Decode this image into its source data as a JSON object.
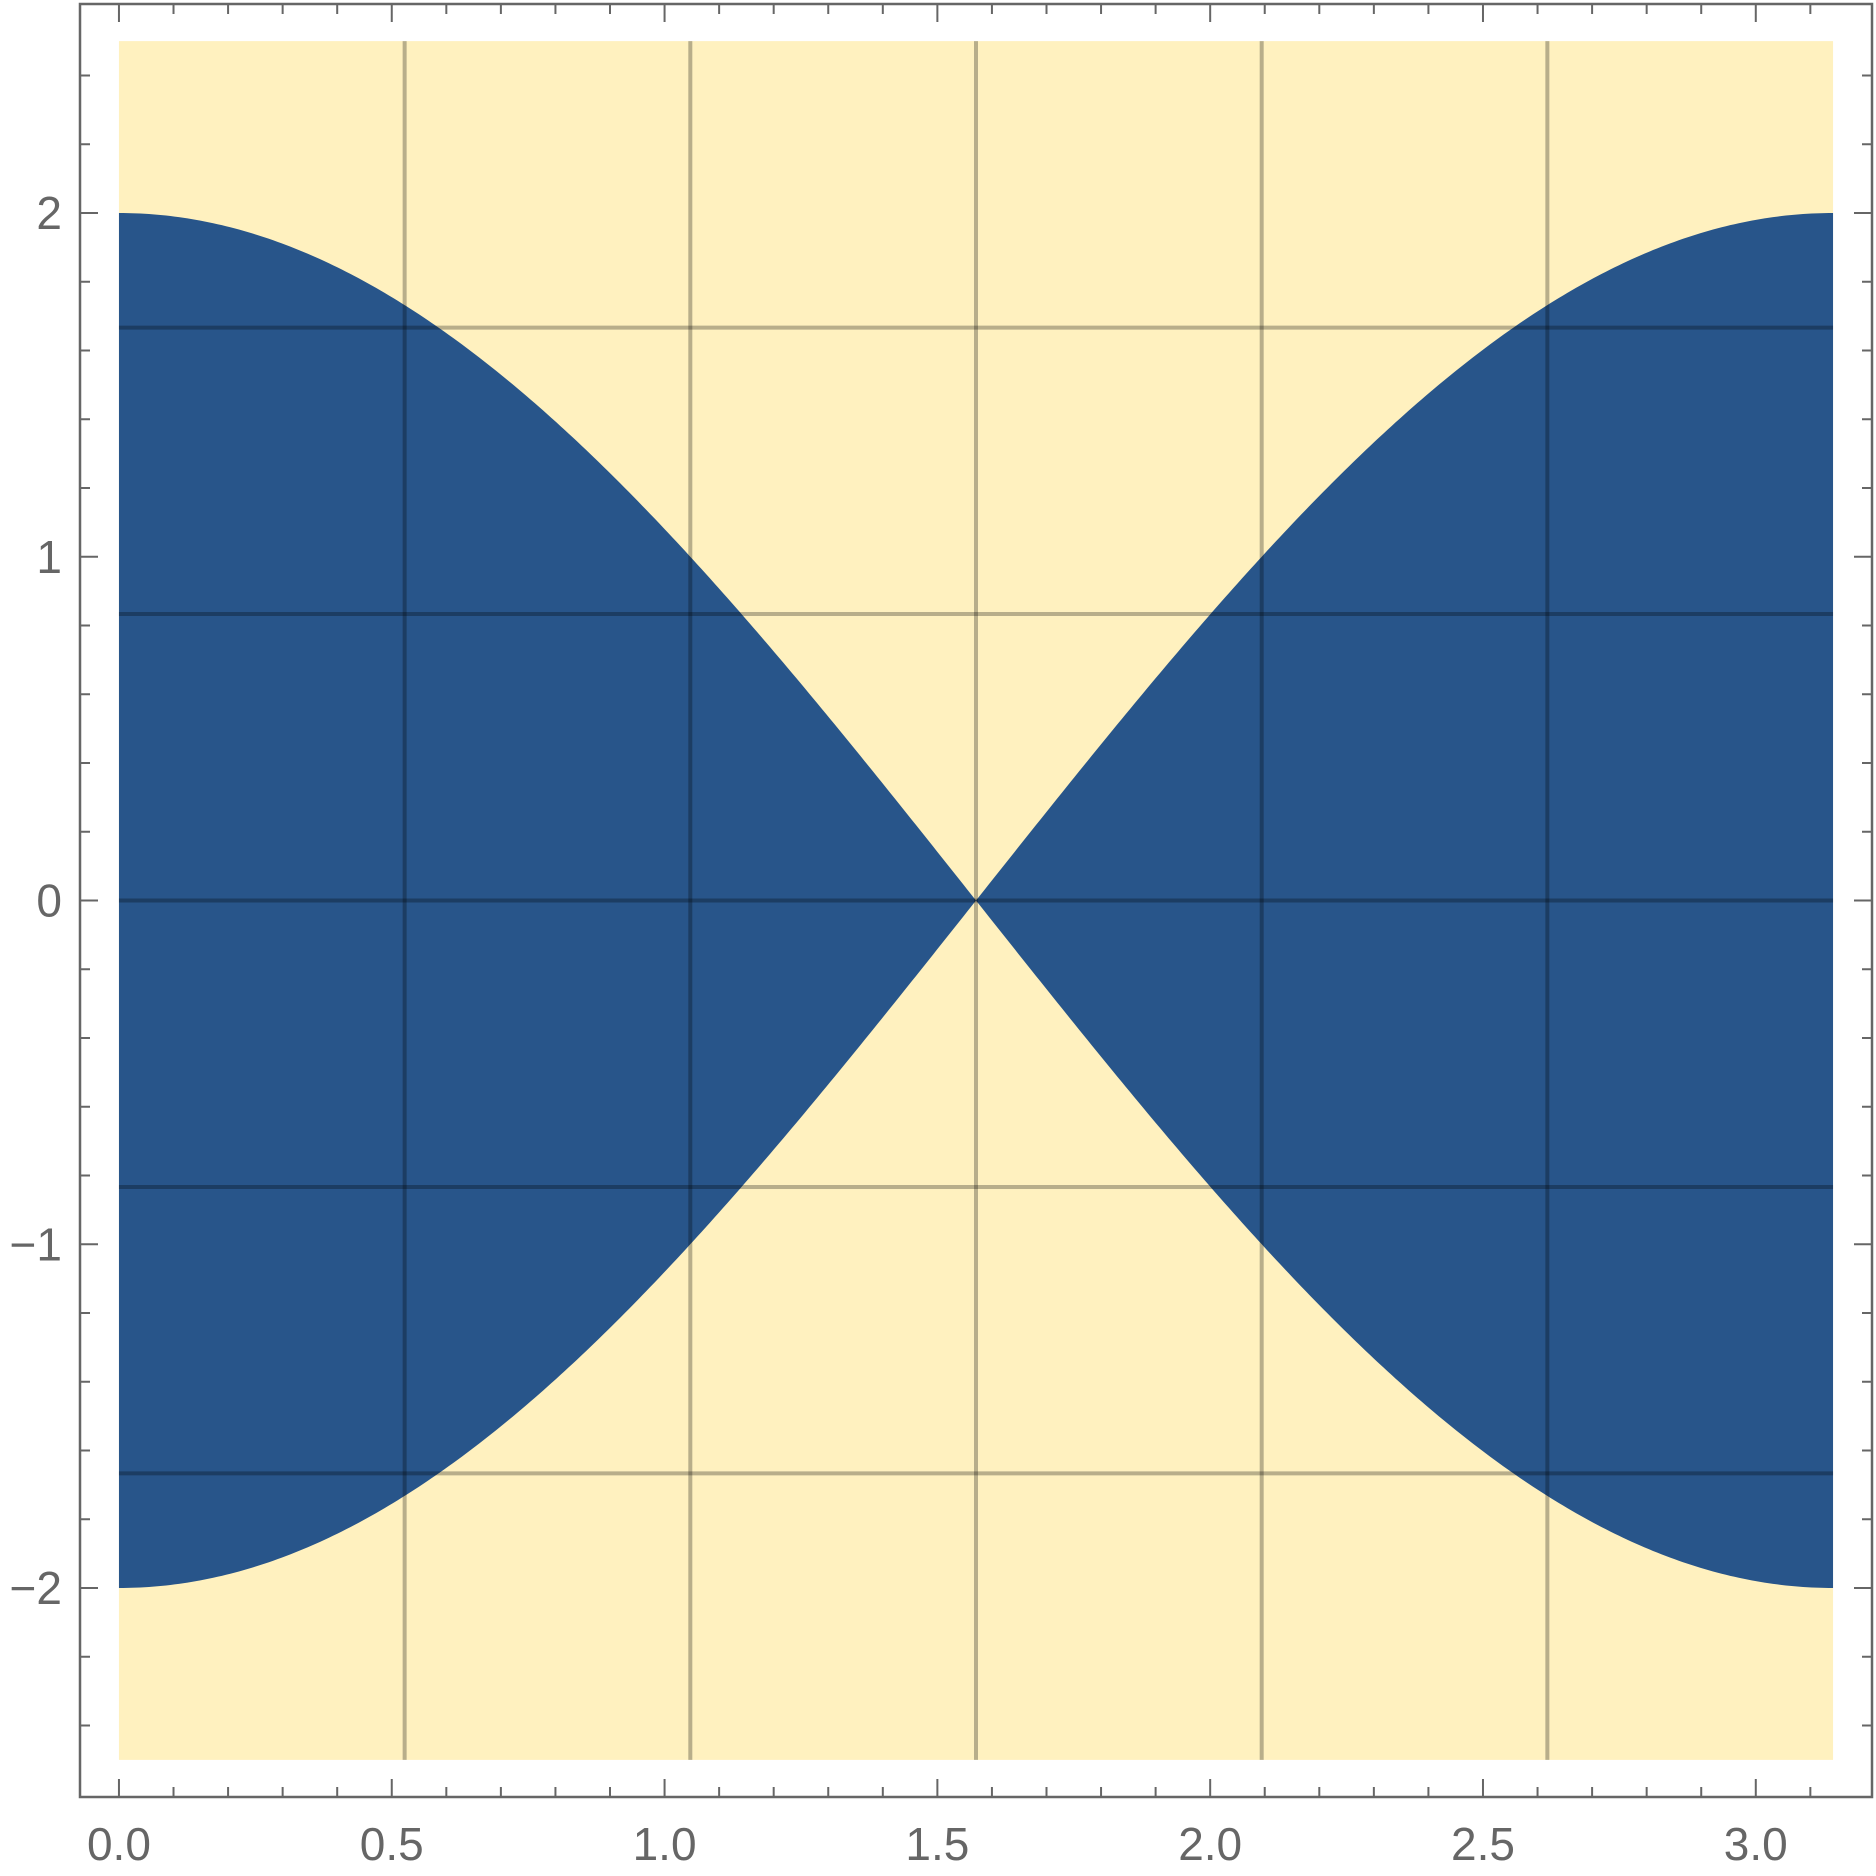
{
  "chart_data": {
    "type": "area",
    "title": "",
    "xlabel": "",
    "ylabel": "",
    "xlim": [
      -0.0714,
      3.213
    ],
    "ylim": [
      -2.608,
      2.608
    ],
    "x_ticks": [
      {
        "value": 0.0,
        "label": "0.0"
      },
      {
        "value": 0.5,
        "label": "0.5"
      },
      {
        "value": 1.0,
        "label": "1.0"
      },
      {
        "value": 1.5,
        "label": "1.5"
      },
      {
        "value": 2.0,
        "label": "2.0"
      },
      {
        "value": 2.5,
        "label": "2.5"
      },
      {
        "value": 3.0,
        "label": "3.0"
      }
    ],
    "x_minor_step": 0.1,
    "y_ticks": [
      {
        "value": -2,
        "label": "−2"
      },
      {
        "value": -1,
        "label": "−1"
      },
      {
        "value": 0,
        "label": "0"
      },
      {
        "value": 1,
        "label": "1"
      },
      {
        "value": 2,
        "label": "2"
      }
    ],
    "y_minor_step": 0.2,
    "grid": true,
    "grid_x": [
      0.5236,
      1.0472,
      1.5708,
      2.0944,
      2.618
    ],
    "grid_y": [
      -1.6667,
      -0.8333,
      0,
      0.8333,
      1.6667
    ],
    "background_region": {
      "x": [
        0,
        3.1416
      ],
      "y": [
        -2.5,
        2.5
      ],
      "color": "#fff1bf"
    },
    "region_boundary": {
      "description": "filled where |y| <= 2|cos x|",
      "x": [
        0,
        0.1571,
        0.3142,
        0.4712,
        0.6283,
        0.7854,
        0.9425,
        1.0996,
        1.2566,
        1.4137,
        1.5708,
        1.7279,
        1.885,
        2.042,
        2.1991,
        2.3562,
        2.5133,
        2.6704,
        2.8274,
        2.9845,
        3.1416
      ],
      "upper": [
        2.0,
        1.9754,
        1.9021,
        1.782,
        1.618,
        1.4142,
        1.1756,
        0.908,
        0.618,
        0.3129,
        0.0,
        0.3129,
        0.618,
        0.908,
        1.1756,
        1.4142,
        1.618,
        1.782,
        1.9021,
        1.9754,
        2.0
      ],
      "lower": [
        -2.0,
        -1.9754,
        -1.9021,
        -1.782,
        -1.618,
        -1.4142,
        -1.1756,
        -0.908,
        -0.618,
        -0.3129,
        0.0,
        -0.3129,
        -0.618,
        -0.908,
        -1.1756,
        -1.4142,
        -1.618,
        -1.782,
        -1.9021,
        -1.9754,
        -2.0
      ],
      "color": "#28558a"
    },
    "colors": {
      "frame": "#666666",
      "grid": "#000000",
      "region": "#28558a",
      "background": "#fff1bf"
    }
  }
}
